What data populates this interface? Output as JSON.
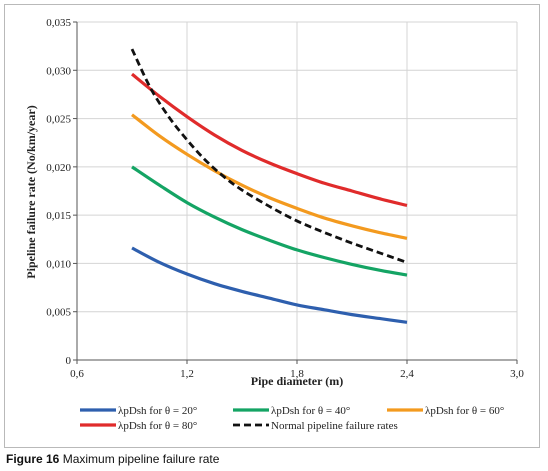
{
  "caption": {
    "label": "Figure 16",
    "text": "Maximum pipeline failure rate"
  },
  "chart_data": {
    "type": "line",
    "title": "",
    "xlabel": "Pipe diameter (m)",
    "ylabel": "Pipeline failure rate (No/km/year)",
    "xlim": [
      0.6,
      3.0
    ],
    "ylim": [
      0,
      0.035
    ],
    "xticks": [
      0.6,
      1.2,
      1.8,
      2.4,
      3.0
    ],
    "xtick_labels": [
      "0,6",
      "1,2",
      "1,8",
      "2,4",
      "3,0"
    ],
    "yticks": [
      0,
      0.005,
      0.01,
      0.015,
      0.02,
      0.025,
      0.03,
      0.035
    ],
    "ytick_labels": [
      "0",
      "0,005",
      "0,010",
      "0,015",
      "0,020",
      "0,025",
      "0,030",
      "0,035"
    ],
    "grid": true,
    "legend_position": "bottom",
    "series": [
      {
        "name": "λpDsh for θ = 20°",
        "color": "#2e5fae",
        "dash": false,
        "x": [
          0.9,
          1.05,
          1.2,
          1.35,
          1.5,
          1.65,
          1.8,
          1.95,
          2.1,
          2.25,
          2.4
        ],
        "y": [
          0.0116,
          0.0101,
          0.0089,
          0.0079,
          0.0071,
          0.0064,
          0.0057,
          0.0052,
          0.0047,
          0.0043,
          0.0039
        ]
      },
      {
        "name": "λpDsh for θ = 40°",
        "color": "#14a464",
        "dash": false,
        "x": [
          0.9,
          1.05,
          1.2,
          1.35,
          1.5,
          1.65,
          1.8,
          1.95,
          2.1,
          2.25,
          2.4
        ],
        "y": [
          0.02,
          0.0181,
          0.0163,
          0.0148,
          0.0135,
          0.0124,
          0.0114,
          0.0106,
          0.0099,
          0.0093,
          0.0088
        ]
      },
      {
        "name": "λpDsh for θ = 60°",
        "color": "#f39a1f",
        "dash": false,
        "x": [
          0.9,
          1.05,
          1.2,
          1.35,
          1.5,
          1.65,
          1.8,
          1.95,
          2.1,
          2.25,
          2.4
        ],
        "y": [
          0.0254,
          0.0232,
          0.0213,
          0.0196,
          0.0181,
          0.0168,
          0.0157,
          0.0147,
          0.0139,
          0.0132,
          0.0126
        ]
      },
      {
        "name": "λpDsh for θ = 80°",
        "color": "#e02b2b",
        "dash": false,
        "x": [
          0.9,
          1.05,
          1.2,
          1.35,
          1.5,
          1.65,
          1.8,
          1.95,
          2.1,
          2.25,
          2.4
        ],
        "y": [
          0.0296,
          0.0273,
          0.0252,
          0.0233,
          0.0217,
          0.0204,
          0.0193,
          0.0183,
          0.0175,
          0.0167,
          0.016
        ]
      },
      {
        "name": "Normal pipeline failure rates",
        "color": "#111111",
        "dash": true,
        "x": [
          0.9,
          1.0,
          1.1,
          1.2,
          1.3,
          1.4,
          1.5,
          1.65,
          1.8,
          1.95,
          2.1,
          2.25,
          2.4
        ],
        "y": [
          0.0322,
          0.0282,
          0.0252,
          0.0228,
          0.0207,
          0.019,
          0.0176,
          0.0159,
          0.0144,
          0.0132,
          0.0121,
          0.0111,
          0.0101
        ]
      }
    ]
  }
}
